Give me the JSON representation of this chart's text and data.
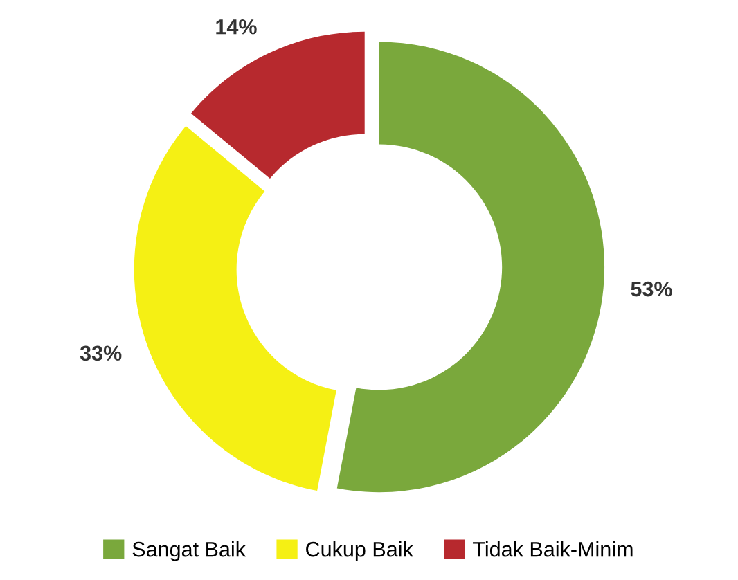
{
  "chart_data": {
    "type": "donut",
    "categories": [
      "Sangat Baik",
      "Cukup Baik",
      "Tidak Baik-Minim"
    ],
    "values": [
      53,
      33,
      14
    ],
    "colors": [
      "#7aa83c",
      "#f5f014",
      "#b7292e"
    ],
    "value_labels": [
      "53%",
      "33%",
      "14%"
    ],
    "legend": "bottom"
  }
}
